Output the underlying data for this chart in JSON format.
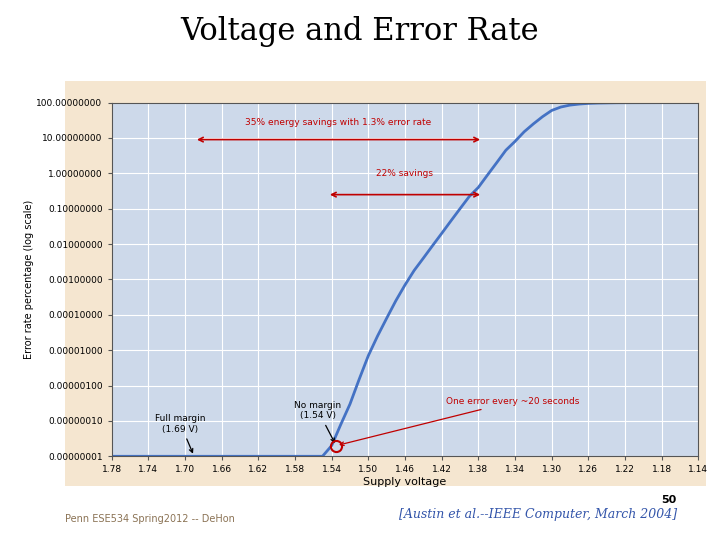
{
  "title": "Voltage and Error Rate",
  "title_fontsize": 22,
  "title_fontname": "serif",
  "background_color": "#ffffff",
  "plot_bg_color": "#cdd9ea",
  "xlabel": "Supply voltage",
  "ylabel": "Error rate percentage (log scale)",
  "footer_left": "Penn ESE534 Spring2012 -- DeHon",
  "footer_right": "[Austin et al.--IEEE Computer, March 2004]",
  "slide_number": "50",
  "x_ticks": [
    1.78,
    1.74,
    1.7,
    1.66,
    1.62,
    1.58,
    1.54,
    1.5,
    1.46,
    1.42,
    1.38,
    1.34,
    1.3,
    1.26,
    1.22,
    1.18,
    1.14
  ],
  "y_ticks_labels": [
    "0.00000001",
    "0.00000010",
    "0.00000100",
    "0.00001000",
    "0.00010000",
    "0.00100000",
    "0.01000000",
    "0.10000000",
    "1.00000000",
    "10.00000000",
    "100.00000000"
  ],
  "y_ticks_values": [
    1e-08,
    1e-07,
    1e-06,
    1e-05,
    0.0001,
    0.001,
    0.01,
    0.1,
    1,
    10,
    100
  ],
  "curve_color": "#4472c4",
  "curve_linewidth": 2.0,
  "annotation_color": "#c00000",
  "outer_bg_color": "#f5e6d0",
  "x_data": [
    1.78,
    1.77,
    1.76,
    1.75,
    1.74,
    1.73,
    1.72,
    1.71,
    1.7,
    1.69,
    1.68,
    1.67,
    1.66,
    1.65,
    1.64,
    1.63,
    1.62,
    1.61,
    1.6,
    1.59,
    1.58,
    1.57,
    1.56,
    1.55,
    1.54,
    1.53,
    1.52,
    1.51,
    1.5,
    1.49,
    1.48,
    1.47,
    1.46,
    1.45,
    1.44,
    1.43,
    1.42,
    1.41,
    1.4,
    1.39,
    1.38,
    1.37,
    1.36,
    1.35,
    1.34,
    1.33,
    1.32,
    1.31,
    1.3,
    1.29,
    1.28,
    1.27,
    1.26,
    1.25,
    1.24,
    1.23,
    1.22,
    1.21,
    1.2,
    1.19,
    1.18,
    1.17,
    1.16,
    1.15,
    1.14
  ],
  "y_data": [
    1e-08,
    1e-08,
    1e-08,
    1e-08,
    1e-08,
    1e-08,
    1e-08,
    1e-08,
    1e-08,
    1e-08,
    1e-08,
    1e-08,
    1e-08,
    1e-08,
    1e-08,
    1e-08,
    1e-08,
    1e-08,
    1e-08,
    1e-08,
    1e-08,
    1e-08,
    1e-08,
    1e-08,
    2e-08,
    8e-08,
    3e-07,
    1.5e-06,
    7e-06,
    2.5e-05,
    8e-05,
    0.00025,
    0.0007,
    0.0018,
    0.004,
    0.009,
    0.02,
    0.045,
    0.1,
    0.22,
    0.4,
    0.9,
    2.0,
    4.5,
    8.0,
    15,
    25,
    40,
    60,
    75,
    85,
    91,
    95,
    97,
    98,
    99,
    99.3,
    99.5,
    99.6,
    99.7,
    99.8,
    99.85,
    99.9,
    99.92,
    99.95
  ]
}
